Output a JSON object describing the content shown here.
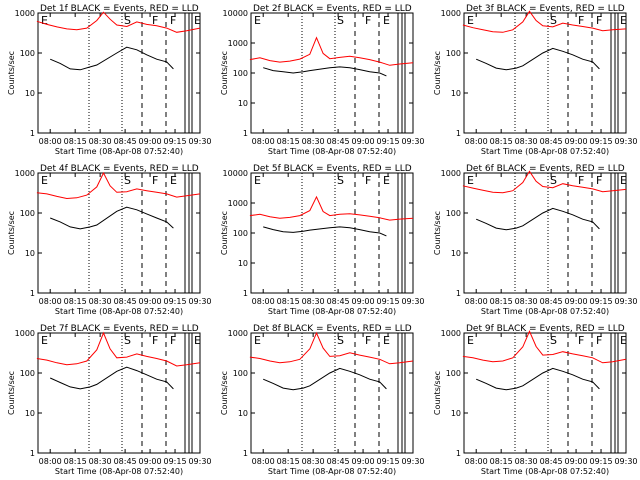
{
  "chart_data": [
    {
      "type": "line",
      "title": "Det 1f BLACK = Events, RED = LLD",
      "xlabel": "Start Time (08-Apr-08 07:52:40)",
      "ylabel": "Counts/sec",
      "ylim": [
        1,
        1000
      ],
      "yscale": "log",
      "ytick_labels": [
        "1",
        "10",
        "100",
        "1000"
      ],
      "xtick_labels": [
        "08:00",
        "08:15",
        "08:30",
        "08:45",
        "09:00",
        "09:15",
        "09:30"
      ],
      "xlim": [
        "07:52:40",
        "09:30"
      ],
      "annotations": [
        "E",
        "S",
        "F",
        "F",
        "E"
      ],
      "series": [
        {
          "color": "#ff0000",
          "x": [
            "07:52",
            "07:58",
            "08:04",
            "08:10",
            "08:16",
            "08:22",
            "08:28",
            "08:32",
            "08:36",
            "08:40",
            "08:46",
            "08:52",
            "08:58",
            "09:04",
            "09:10",
            "09:16",
            "09:22",
            "09:30"
          ],
          "values": [
            620,
            520,
            450,
            400,
            380,
            420,
            650,
            1050,
            700,
            500,
            460,
            600,
            520,
            480,
            420,
            330,
            360,
            420
          ]
        },
        {
          "color": "#000000",
          "x": [
            "08:00",
            "08:06",
            "08:12",
            "08:18",
            "08:24",
            "08:28",
            "08:40",
            "08:46",
            "08:52",
            "08:58",
            "09:04",
            "09:10",
            "09:14"
          ],
          "values": [
            70,
            55,
            40,
            38,
            45,
            50,
            100,
            140,
            120,
            90,
            70,
            60,
            40
          ]
        }
      ]
    },
    {
      "type": "line",
      "title": "Det 2f BLACK = Events, RED = LLD",
      "xlabel": "Start Time (08-Apr-08 07:52:40)",
      "ylabel": "Counts/sec",
      "ylim": [
        1,
        10000
      ],
      "yscale": "log",
      "ytick_labels": [
        "1",
        "10",
        "100",
        "1000",
        "10000"
      ],
      "xtick_labels": [
        "08:00",
        "08:15",
        "08:30",
        "08:45",
        "09:00",
        "09:15",
        "09:30"
      ],
      "xlim": [
        "07:52:40",
        "09:30"
      ],
      "annotations": [
        "E",
        "S",
        "F",
        "E"
      ],
      "series": [
        {
          "color": "#ff0000",
          "x": [
            "07:52",
            "07:58",
            "08:04",
            "08:10",
            "08:16",
            "08:22",
            "08:28",
            "08:32",
            "08:36",
            "08:40",
            "08:46",
            "08:52",
            "08:58",
            "09:04",
            "09:10",
            "09:16",
            "09:22",
            "09:30"
          ],
          "values": [
            280,
            320,
            260,
            230,
            250,
            290,
            420,
            1500,
            450,
            300,
            330,
            360,
            320,
            280,
            230,
            180,
            200,
            220
          ]
        },
        {
          "color": "#000000",
          "x": [
            "08:00",
            "08:06",
            "08:12",
            "08:18",
            "08:24",
            "08:28",
            "08:40",
            "08:46",
            "08:52",
            "08:58",
            "09:04",
            "09:10",
            "09:14"
          ],
          "values": [
            150,
            120,
            110,
            100,
            110,
            120,
            150,
            160,
            150,
            130,
            110,
            100,
            80
          ]
        }
      ]
    },
    {
      "type": "line",
      "title": "Det 3f BLACK = Events, RED = LLD",
      "xlabel": "Start Time (08-Apr-08 07:52:40)",
      "ylabel": "Counts/sec",
      "ylim": [
        1,
        1000
      ],
      "yscale": "log",
      "ytick_labels": [
        "1",
        "10",
        "100",
        "1000"
      ],
      "xtick_labels": [
        "08:00",
        "08:15",
        "08:30",
        "08:45",
        "09:00",
        "09:15",
        "09:30"
      ],
      "xlim": [
        "07:52:40",
        "09:30"
      ],
      "annotations": [
        "E",
        "S",
        "F",
        "F",
        "E"
      ],
      "series": [
        {
          "color": "#ff0000",
          "x": [
            "07:52",
            "07:58",
            "08:04",
            "08:10",
            "08:16",
            "08:22",
            "08:28",
            "08:32",
            "08:36",
            "08:40",
            "08:46",
            "08:52",
            "08:58",
            "09:04",
            "09:10",
            "09:16",
            "09:22",
            "09:30"
          ],
          "values": [
            500,
            430,
            380,
            340,
            330,
            380,
            600,
            1100,
            650,
            480,
            450,
            560,
            500,
            460,
            420,
            360,
            380,
            400
          ]
        },
        {
          "color": "#000000",
          "x": [
            "08:00",
            "08:06",
            "08:12",
            "08:18",
            "08:24",
            "08:28",
            "08:40",
            "08:46",
            "08:52",
            "08:58",
            "09:04",
            "09:10",
            "09:14"
          ],
          "values": [
            70,
            55,
            42,
            38,
            42,
            48,
            100,
            130,
            110,
            90,
            70,
            60,
            40
          ]
        }
      ]
    },
    {
      "type": "line",
      "title": "Det 4f BLACK = Events, RED = LLD",
      "xlabel": "Start Time (08-Apr-08 07:52:40)",
      "ylabel": "Counts/sec",
      "ylim": [
        1,
        1000
      ],
      "yscale": "log",
      "ytick_labels": [
        "1",
        "10",
        "100",
        "1000"
      ],
      "xtick_labels": [
        "08:00",
        "08:15",
        "08:30",
        "08:45",
        "09:00",
        "09:15",
        "09:30"
      ],
      "xlim": [
        "07:52:40",
        "09:30"
      ],
      "annotations": [
        "E",
        "S",
        "F",
        "E"
      ],
      "series": [
        {
          "color": "#ff0000",
          "x": [
            "07:52",
            "07:58",
            "08:04",
            "08:10",
            "08:16",
            "08:22",
            "08:28",
            "08:32",
            "08:36",
            "08:40",
            "08:46",
            "08:52",
            "08:58",
            "09:04",
            "09:10",
            "09:16",
            "09:22",
            "09:30"
          ],
          "values": [
            320,
            300,
            260,
            230,
            240,
            280,
            450,
            1000,
            480,
            330,
            340,
            400,
            360,
            330,
            300,
            250,
            270,
            300
          ]
        },
        {
          "color": "#000000",
          "x": [
            "08:00",
            "08:06",
            "08:12",
            "08:18",
            "08:24",
            "08:28",
            "08:40",
            "08:46",
            "08:52",
            "08:58",
            "09:04",
            "09:10",
            "09:14"
          ],
          "values": [
            75,
            60,
            45,
            40,
            45,
            50,
            110,
            140,
            120,
            95,
            75,
            60,
            42
          ]
        }
      ]
    },
    {
      "type": "line",
      "title": "Det 5f BLACK = Events, RED = LLD",
      "xlabel": "Start Time (08-Apr-08 07:52:40)",
      "ylabel": "Counts/sec",
      "ylim": [
        1,
        10000
      ],
      "yscale": "log",
      "ytick_labels": [
        "1",
        "10",
        "100",
        "1000",
        "10000"
      ],
      "xtick_labels": [
        "08:00",
        "08:15",
        "08:30",
        "08:45",
        "09:00",
        "09:15",
        "09:30"
      ],
      "xlim": [
        "07:52:40",
        "09:30"
      ],
      "annotations": [
        "E",
        "S",
        "F",
        "E"
      ],
      "series": [
        {
          "color": "#ff0000",
          "x": [
            "07:52",
            "07:58",
            "08:04",
            "08:10",
            "08:16",
            "08:22",
            "08:28",
            "08:32",
            "08:36",
            "08:40",
            "08:46",
            "08:52",
            "08:58",
            "09:04",
            "09:10",
            "09:16",
            "09:22",
            "09:30"
          ],
          "values": [
            380,
            420,
            350,
            310,
            330,
            380,
            560,
            1600,
            520,
            380,
            420,
            440,
            400,
            360,
            320,
            270,
            290,
            310
          ]
        },
        {
          "color": "#000000",
          "x": [
            "08:00",
            "08:06",
            "08:12",
            "08:18",
            "08:24",
            "08:28",
            "08:40",
            "08:46",
            "08:52",
            "08:58",
            "09:04",
            "09:10",
            "09:14"
          ],
          "values": [
            160,
            130,
            110,
            105,
            115,
            125,
            150,
            160,
            150,
            130,
            110,
            100,
            80
          ]
        }
      ]
    },
    {
      "type": "line",
      "title": "Det 6f BLACK = Events, RED = LLD",
      "xlabel": "Start Time (08-Apr-08 07:52:40)",
      "ylabel": "Counts/sec",
      "ylim": [
        1,
        1000
      ],
      "yscale": "log",
      "ytick_labels": [
        "1",
        "10",
        "100",
        "1000"
      ],
      "xtick_labels": [
        "08:00",
        "08:15",
        "08:30",
        "08:45",
        "09:00",
        "09:15",
        "09:30"
      ],
      "xlim": [
        "07:52:40",
        "09:30"
      ],
      "annotations": [
        "E",
        "S",
        "F",
        "F",
        "E"
      ],
      "series": [
        {
          "color": "#ff0000",
          "x": [
            "07:52",
            "07:58",
            "08:04",
            "08:10",
            "08:16",
            "08:22",
            "08:28",
            "08:32",
            "08:36",
            "08:40",
            "08:46",
            "08:52",
            "08:58",
            "09:04",
            "09:10",
            "09:16",
            "09:22",
            "09:30"
          ],
          "values": [
            480,
            420,
            370,
            330,
            320,
            360,
            580,
            1100,
            620,
            460,
            430,
            540,
            480,
            440,
            400,
            340,
            360,
            390
          ]
        },
        {
          "color": "#000000",
          "x": [
            "08:00",
            "08:06",
            "08:12",
            "08:18",
            "08:24",
            "08:28",
            "08:40",
            "08:46",
            "08:52",
            "08:58",
            "09:04",
            "09:10",
            "09:14"
          ],
          "values": [
            70,
            55,
            42,
            38,
            42,
            48,
            100,
            130,
            110,
            90,
            70,
            60,
            40
          ]
        }
      ]
    },
    {
      "type": "line",
      "title": "Det 7f BLACK = Events, RED = LLD",
      "xlabel": "Start Time (08-Apr-08 07:52:40)",
      "ylabel": "Counts/sec",
      "ylim": [
        1,
        1000
      ],
      "yscale": "log",
      "ytick_labels": [
        "1",
        "10",
        "100",
        "1000"
      ],
      "xtick_labels": [
        "08:00",
        "08:15",
        "08:30",
        "08:45",
        "09:00",
        "09:15",
        "09:30"
      ],
      "xlim": [
        "07:52:40",
        "09:30"
      ],
      "annotations": [
        "E",
        "S",
        "F",
        "F",
        "E"
      ],
      "series": [
        {
          "color": "#ff0000",
          "x": [
            "07:52",
            "07:58",
            "08:04",
            "08:10",
            "08:16",
            "08:22",
            "08:28",
            "08:32",
            "08:36",
            "08:40",
            "08:46",
            "08:52",
            "08:58",
            "09:04",
            "09:10",
            "09:16",
            "09:22",
            "09:30"
          ],
          "values": [
            230,
            210,
            180,
            160,
            170,
            200,
            380,
            1000,
            400,
            240,
            250,
            300,
            260,
            230,
            200,
            150,
            160,
            180
          ]
        },
        {
          "color": "#000000",
          "x": [
            "08:00",
            "08:06",
            "08:12",
            "08:18",
            "08:24",
            "08:28",
            "08:40",
            "08:46",
            "08:52",
            "08:58",
            "09:04",
            "09:10",
            "09:14"
          ],
          "values": [
            75,
            58,
            45,
            40,
            45,
            52,
            110,
            140,
            115,
            90,
            70,
            60,
            40
          ]
        }
      ]
    },
    {
      "type": "line",
      "title": "Det 8f BLACK = Events, RED = LLD",
      "xlabel": "Start Time (08-Apr-08 07:52:40)",
      "ylabel": "Counts/sec",
      "ylim": [
        1,
        1000
      ],
      "yscale": "log",
      "ytick_labels": [
        "1",
        "10",
        "100",
        "1000"
      ],
      "xtick_labels": [
        "08:00",
        "08:15",
        "08:30",
        "08:45",
        "09:00",
        "09:15",
        "09:30"
      ],
      "xlim": [
        "07:52:40",
        "09:30"
      ],
      "annotations": [
        "E",
        "S",
        "F",
        "E"
      ],
      "series": [
        {
          "color": "#ff0000",
          "x": [
            "07:52",
            "07:58",
            "08:04",
            "08:10",
            "08:16",
            "08:22",
            "08:28",
            "08:32",
            "08:36",
            "08:40",
            "08:46",
            "08:52",
            "08:58",
            "09:04",
            "09:10",
            "09:16",
            "09:22",
            "09:30"
          ],
          "values": [
            250,
            230,
            200,
            180,
            190,
            220,
            400,
            1000,
            420,
            260,
            270,
            320,
            280,
            250,
            220,
            170,
            180,
            200
          ]
        },
        {
          "color": "#000000",
          "x": [
            "08:00",
            "08:06",
            "08:12",
            "08:18",
            "08:24",
            "08:28",
            "08:40",
            "08:46",
            "08:52",
            "08:58",
            "09:04",
            "09:10",
            "09:14"
          ],
          "values": [
            70,
            55,
            42,
            38,
            42,
            48,
            100,
            130,
            110,
            90,
            70,
            60,
            40
          ]
        }
      ]
    },
    {
      "type": "line",
      "title": "Det 9f BLACK = Events, RED = LLD",
      "xlabel": "Start Time (08-Apr-08 07:52:40)",
      "ylabel": "Counts/sec",
      "ylim": [
        1,
        1000
      ],
      "yscale": "log",
      "ytick_labels": [
        "1",
        "10",
        "100",
        "1000"
      ],
      "xtick_labels": [
        "08:00",
        "08:15",
        "08:30",
        "08:45",
        "09:00",
        "09:15",
        "09:30"
      ],
      "xlim": [
        "07:52:40",
        "09:30"
      ],
      "annotations": [
        "E",
        "S",
        "F",
        "F",
        "E"
      ],
      "series": [
        {
          "color": "#ff0000",
          "x": [
            "07:52",
            "07:58",
            "08:04",
            "08:10",
            "08:16",
            "08:22",
            "08:28",
            "08:32",
            "08:36",
            "08:40",
            "08:46",
            "08:52",
            "08:58",
            "09:04",
            "09:10",
            "09:16",
            "09:22",
            "09:30"
          ],
          "values": [
            260,
            240,
            210,
            190,
            200,
            240,
            450,
            1100,
            460,
            280,
            290,
            340,
            300,
            270,
            240,
            180,
            190,
            220
          ]
        },
        {
          "color": "#000000",
          "x": [
            "08:00",
            "08:06",
            "08:12",
            "08:18",
            "08:24",
            "08:28",
            "08:40",
            "08:46",
            "08:52",
            "08:58",
            "09:04",
            "09:10",
            "09:14"
          ],
          "values": [
            70,
            55,
            42,
            38,
            42,
            48,
            100,
            130,
            110,
            90,
            70,
            60,
            40
          ]
        }
      ]
    }
  ]
}
